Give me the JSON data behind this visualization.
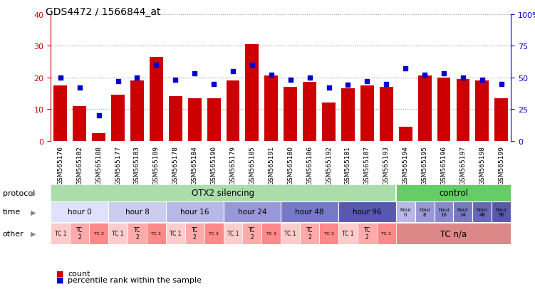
{
  "title": "GDS4472 / 1566844_at",
  "samples": [
    "GSM565176",
    "GSM565182",
    "GSM565188",
    "GSM565177",
    "GSM565183",
    "GSM565189",
    "GSM565178",
    "GSM565184",
    "GSM565190",
    "GSM565179",
    "GSM565185",
    "GSM565191",
    "GSM565180",
    "GSM565186",
    "GSM565192",
    "GSM565181",
    "GSM565187",
    "GSM565193",
    "GSM565194",
    "GSM565195",
    "GSM565196",
    "GSM565197",
    "GSM565198",
    "GSM565199"
  ],
  "counts": [
    17.5,
    11.0,
    2.5,
    14.5,
    19.0,
    26.5,
    14.0,
    13.5,
    13.5,
    19.0,
    30.5,
    20.5,
    17.0,
    18.5,
    12.0,
    16.5,
    17.5,
    17.0,
    4.5,
    20.5,
    20.0,
    19.5,
    19.0,
    13.5
  ],
  "percentiles": [
    50,
    42,
    20,
    47,
    50,
    60,
    48,
    53,
    45,
    55,
    60,
    52,
    48,
    50,
    42,
    44,
    47,
    45,
    57,
    52,
    53,
    50,
    48,
    45
  ],
  "bar_color": "#cc0000",
  "dot_color": "#0000cc",
  "ylim_left": [
    0,
    40
  ],
  "ylim_right": [
    0,
    100
  ],
  "yticks_left": [
    0,
    10,
    20,
    30,
    40
  ],
  "yticks_right": [
    0,
    25,
    50,
    75,
    100
  ],
  "ytick_labels_left": [
    "0",
    "10",
    "20",
    "30",
    "40"
  ],
  "ytick_labels_right": [
    "0",
    "25",
    "50",
    "75",
    "100%"
  ],
  "protocol_otx2_label": "OTX2 silencing",
  "protocol_control_label": "control",
  "protocol_otx2_color": "#aaddaa",
  "protocol_control_color": "#66cc66",
  "time_colors_otx2": [
    "#e0e0ff",
    "#ccccf0",
    "#b8b8e8",
    "#9898d8",
    "#7878c8",
    "#5858b0"
  ],
  "time_labels_otx2": [
    "hour 0",
    "hour 8",
    "hour 16",
    "hour 24",
    "hour 48",
    "hour 96"
  ],
  "time_colors_ctrl": [
    "#b8b8e8",
    "#9898d8",
    "#8888cc",
    "#7878c0",
    "#6868b8",
    "#5858ac"
  ],
  "time_labels_ctrl": [
    "hour\n0",
    "hour\n8",
    "hour\n16",
    "hour\n24",
    "hour\n48",
    "hour\n96"
  ],
  "tc_colors": [
    "#ffcccc",
    "#ffaaaa",
    "#ff8888"
  ],
  "tcna_color": "#dd8888",
  "legend_count_color": "#cc0000",
  "legend_dot_color": "#0000cc",
  "grid_color": "#999999"
}
